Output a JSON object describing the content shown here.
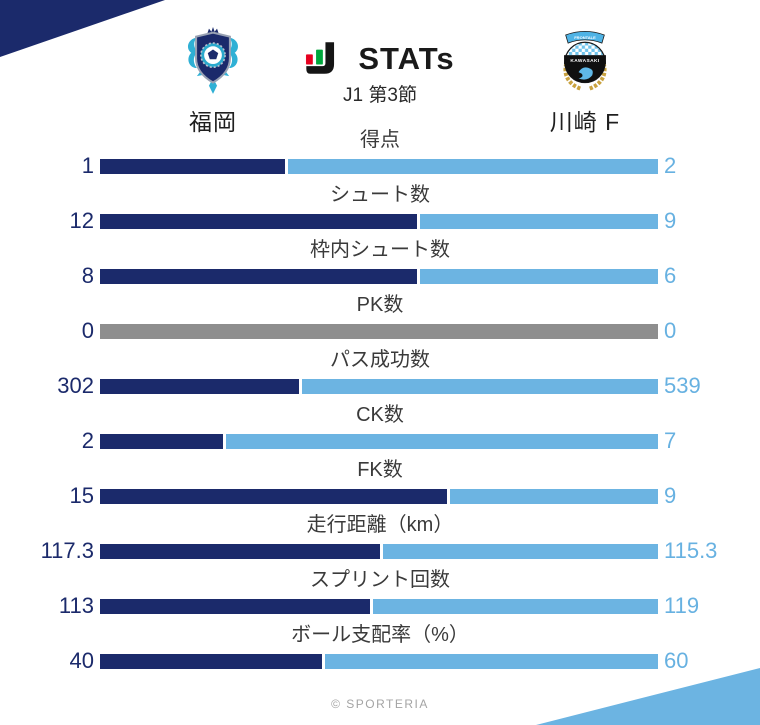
{
  "header": {
    "logo_text": "STATs",
    "match_round": "J1 第3節",
    "home_team": "福岡",
    "away_team": "川崎 F"
  },
  "colors": {
    "home_bar": "#1b2a6b",
    "away_bar": "#6cb4e2",
    "neutral_bar": "#8e8e8e",
    "home_value_text": "#1b2a6b",
    "away_value_text": "#67b1e1",
    "corner_top_left": "#1b2a6b",
    "corner_bottom_right": "#6cb4e2",
    "logo_icon_red": "#e6001f",
    "logo_icon_green": "#00a73c"
  },
  "chart_data": {
    "type": "bar",
    "subtype": "horizontal-paired-team-comparison",
    "title": "STATs",
    "subtitle": "J1 第3節",
    "categories": [
      "得点",
      "シュート数",
      "枠内シュート数",
      "PK数",
      "パス成功数",
      "CK数",
      "FK数",
      "走行距離（km）",
      "スプリント回数",
      "ボール支配率（%）"
    ],
    "series": [
      {
        "name": "福岡",
        "side": "left",
        "color": "#1b2a6b",
        "values": [
          1,
          12,
          8,
          0,
          302,
          2,
          15,
          117.3,
          113,
          40
        ]
      },
      {
        "name": "川崎 F",
        "side": "right",
        "color": "#6cb4e2",
        "values": [
          2,
          9,
          6,
          0,
          539,
          7,
          9,
          115.3,
          119,
          60
        ]
      }
    ],
    "neutral_color": "#8e8e8e",
    "neutral_rule": "both values zero renders one gray full-width bar",
    "bar_scale": "each row bar split by value share of row total",
    "value_labels": "at both outer ends of each bar",
    "legend_position": "team names above chart"
  },
  "footer": {
    "credit": "© SPORTERIA"
  }
}
